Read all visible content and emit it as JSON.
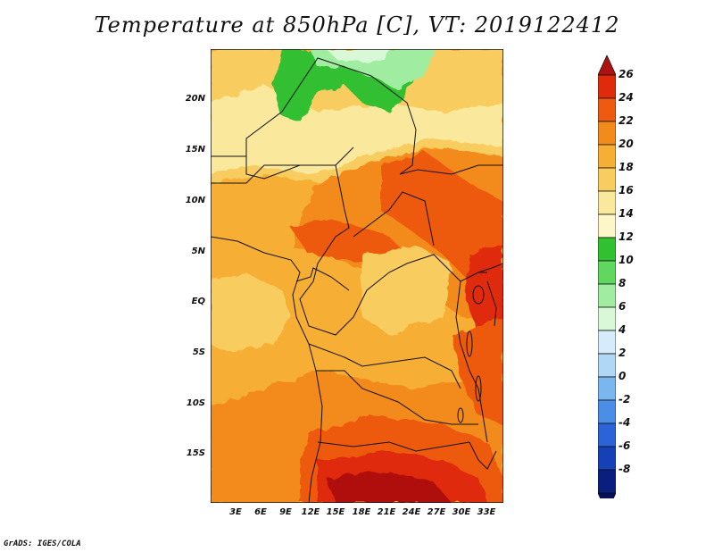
{
  "title": "Temperature at 850hPa [C], VT: 2019122412",
  "credit": "GrADS: IGES/COLA",
  "y_axis_labels": [
    "20N",
    "15N",
    "10N",
    "5N",
    "EQ",
    "5S",
    "10S",
    "15S"
  ],
  "x_axis_labels": [
    "3E",
    "6E",
    "9E",
    "12E",
    "15E",
    "18E",
    "21E",
    "24E",
    "27E",
    "30E",
    "33E"
  ],
  "colorbar": {
    "labels": [
      "26",
      "24",
      "22",
      "20",
      "18",
      "16",
      "14",
      "12",
      "10",
      "8",
      "6",
      "4",
      "2",
      "0",
      "-2",
      "-4",
      "-6",
      "-8"
    ],
    "colors": [
      "#b01010",
      "#e02a0c",
      "#ee5a10",
      "#f28a1c",
      "#f6ae34",
      "#f8cc5e",
      "#fae89c",
      "#fcf6c8",
      "#30c030",
      "#60d860",
      "#a0eca0",
      "#d8f8d8",
      "#d6ecfa",
      "#b0d8f6",
      "#7ab6f0",
      "#4a8ee8",
      "#2a64d8",
      "#1640b8",
      "#0a1e80",
      "#06105a"
    ]
  },
  "map_colors": {
    "background": "#f6ae34",
    "orange": "#f28a1c",
    "light_orange": "#f8cc5e",
    "pale_yellow": "#fae89c",
    "red_orange": "#ee5a10",
    "red": "#e02a0c",
    "dark_red": "#b01010",
    "green": "#30c030",
    "light_green": "#a0eca0",
    "pale_green": "#d8f8d8",
    "border": "#111111"
  }
}
